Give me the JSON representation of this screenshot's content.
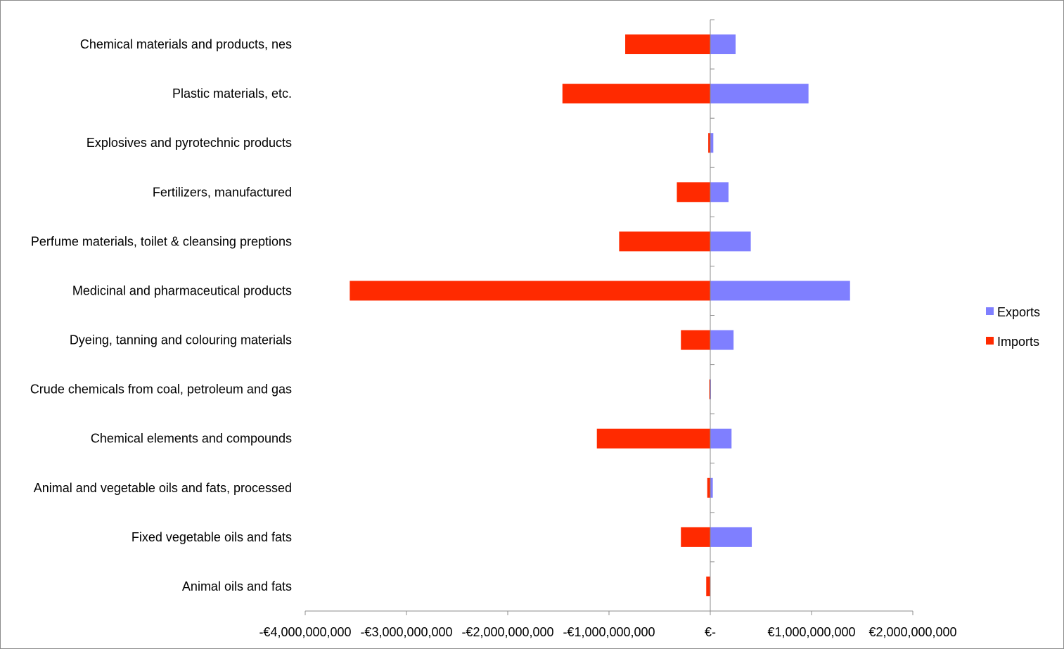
{
  "chart_data": {
    "type": "bar",
    "orientation": "horizontal",
    "stacking": "diverging",
    "categories": [
      "Chemical materials and products, nes",
      "Plastic materials, etc.",
      "Explosives and pyrotechnic products",
      "Fertilizers, manufactured",
      "Perfume materials, toilet & cleansing preptions",
      "Medicinal and pharmaceutical products",
      "Dyeing, tanning and colouring materials",
      "Crude chemicals from coal, petroleum and gas",
      "Chemical elements and compounds",
      "Animal and vegetable oils and fats, processed",
      "Fixed vegetable oils and fats",
      "Animal oils and fats"
    ],
    "series": [
      {
        "name": "Exports",
        "color": "#7f7fff",
        "values": [
          250000000,
          970000000,
          30000000,
          180000000,
          400000000,
          1380000000,
          230000000,
          5000000,
          210000000,
          25000000,
          410000000,
          0
        ]
      },
      {
        "name": "Imports",
        "color": "#ff2a00",
        "values": [
          -840000000,
          -1460000000,
          -20000000,
          -330000000,
          -900000000,
          -3560000000,
          -290000000,
          -10000000,
          -1120000000,
          -30000000,
          -290000000,
          -40000000
        ]
      }
    ],
    "xlim": [
      -4000000000,
      2000000000
    ],
    "xticks": [
      -4000000000,
      -3000000000,
      -2000000000,
      -1000000000,
      0,
      1000000000,
      2000000000
    ],
    "xtick_labels": [
      "-€4,000,000,000",
      "-€3,000,000,000",
      "-€2,000,000,000",
      "-€1,000,000,000",
      "€-",
      "€1,000,000,000",
      "€2,000,000,000"
    ],
    "title": "",
    "xlabel": "",
    "ylabel": "",
    "grid": false,
    "legend": {
      "position": "right",
      "entries": [
        "Exports",
        "Imports"
      ]
    }
  }
}
